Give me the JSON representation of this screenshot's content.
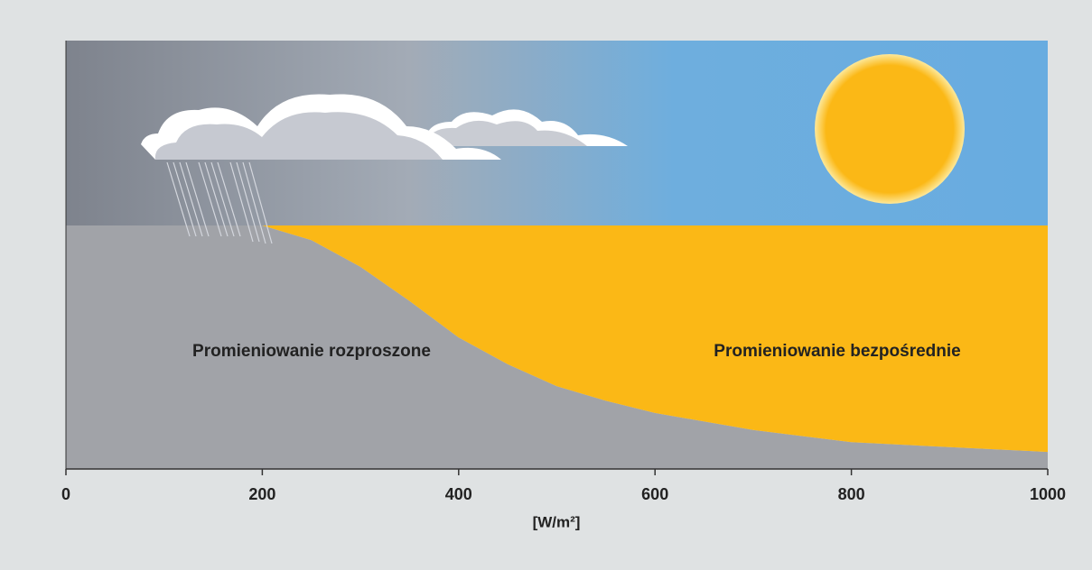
{
  "chart_data": {
    "type": "area",
    "x": [
      0,
      100,
      200,
      250,
      300,
      350,
      400,
      450,
      500,
      550,
      600,
      700,
      800,
      900,
      1000
    ],
    "series": [
      {
        "name": "Promieniowanie rozproszone",
        "color": "#a1a3a8",
        "values": [
          100,
          100,
          100,
          94,
          83,
          69,
          54,
          43,
          34,
          28,
          23,
          16,
          11,
          9,
          7
        ]
      },
      {
        "name": "Promieniowanie bezpośrednie",
        "color": "#fbb816",
        "values": [
          0,
          0,
          0,
          6,
          17,
          31,
          46,
          57,
          66,
          72,
          77,
          84,
          89,
          91,
          93
        ]
      }
    ],
    "stacked": true,
    "xlim": [
      0,
      1000
    ],
    "xticks": [
      0,
      200,
      400,
      600,
      800,
      1000
    ],
    "ylim": [
      0,
      100
    ],
    "xlabel": "[W/m²]"
  }
}
